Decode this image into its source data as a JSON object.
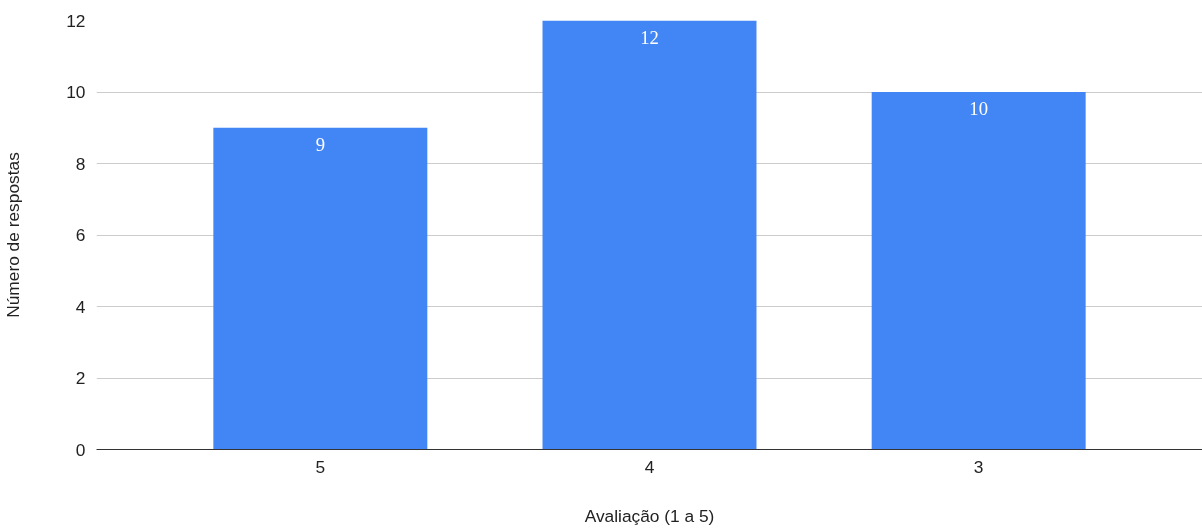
{
  "chart_data": {
    "type": "bar",
    "xlabel": "Avaliação (1 a 5)",
    "ylabel": "Número de respostas",
    "categories": [
      "5",
      "4",
      "3"
    ],
    "values": [
      9,
      12,
      10
    ],
    "color": "#4285f4",
    "ylim": [
      0,
      12
    ],
    "yticks": [
      0,
      2,
      4,
      6,
      8,
      10,
      12
    ],
    "grid": "y",
    "data_labels": true
  }
}
